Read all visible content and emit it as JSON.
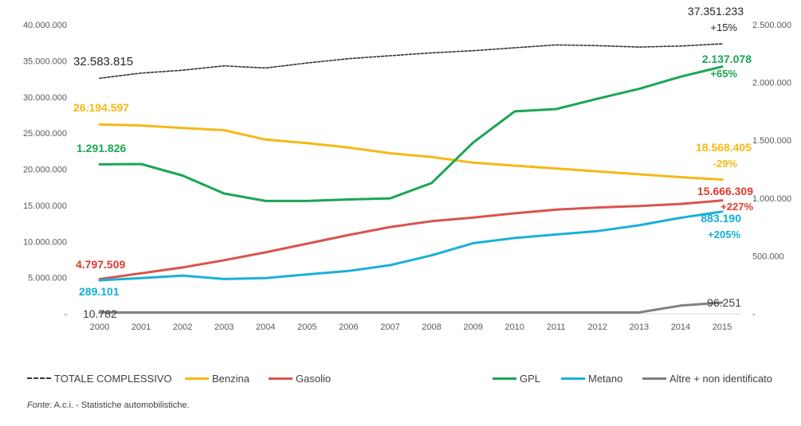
{
  "chart_data": {
    "type": "line",
    "categories": [
      "2000",
      "2001",
      "2002",
      "2003",
      "2004",
      "2005",
      "2006",
      "2007",
      "2008",
      "2009",
      "2010",
      "2011",
      "2012",
      "2013",
      "2014",
      "2015"
    ],
    "left_axis": {
      "ylim": [
        0,
        40000000
      ],
      "ticks": [
        {
          "value": 0,
          "label": "-"
        },
        {
          "value": 5000000,
          "label": "5.000.000"
        },
        {
          "value": 10000000,
          "label": "10.000.000"
        },
        {
          "value": 15000000,
          "label": "15.000.000"
        },
        {
          "value": 20000000,
          "label": "20.000.000"
        },
        {
          "value": 25000000,
          "label": "25.000.000"
        },
        {
          "value": 30000000,
          "label": "30.000.000"
        },
        {
          "value": 35000000,
          "label": "35.000.000"
        },
        {
          "value": 40000000,
          "label": "40.000.000"
        }
      ]
    },
    "right_axis": {
      "ylim": [
        0,
        2500000
      ],
      "ticks": [
        {
          "value": 0,
          "label": "-"
        },
        {
          "value": 500000,
          "label": "500.000"
        },
        {
          "value": 1000000,
          "label": "1.000.000"
        },
        {
          "value": 1500000,
          "label": "1.500.000"
        },
        {
          "value": 2000000,
          "label": "2.000.000"
        },
        {
          "value": 2500000,
          "label": "2.500.000"
        }
      ]
    },
    "series": [
      {
        "name": "TOTALE COMPLESSIVO",
        "axis": "left",
        "color": "#333333",
        "dashed": true,
        "values": [
          32583815,
          33300000,
          33700000,
          34300000,
          34000000,
          34700000,
          35300000,
          35700000,
          36100000,
          36400000,
          36800000,
          37200000,
          37100000,
          36900000,
          37050000,
          37351233
        ],
        "label_start": "32.583.815",
        "label_end": "37.351.233",
        "pct_end": "+15%"
      },
      {
        "name": "Benzina",
        "axis": "left",
        "color": "#f5b915",
        "dashed": false,
        "values": [
          26194597,
          26050000,
          25700000,
          25400000,
          24100000,
          23600000,
          23000000,
          22200000,
          21700000,
          20900000,
          20500000,
          20100000,
          19700000,
          19300000,
          18900000,
          18568405
        ],
        "label_start": "26.194.597",
        "label_end": "18.568.405",
        "pct_end": "-29%"
      },
      {
        "name": "Gasolio",
        "axis": "left",
        "color": "#d9534f",
        "dashed": false,
        "values": [
          4797509,
          5600000,
          6400000,
          7400000,
          8500000,
          9700000,
          10900000,
          12000000,
          12800000,
          13300000,
          13900000,
          14400000,
          14700000,
          14900000,
          15200000,
          15666309
        ],
        "label_start": "4.797.509",
        "label_end": "15.666.309",
        "pct_end": "+227%"
      },
      {
        "name": "GPL",
        "axis": "right",
        "color": "#1aa655",
        "dashed": false,
        "values": [
          1291826,
          1295000,
          1195000,
          1040000,
          975000,
          975000,
          988000,
          998000,
          1130000,
          1480000,
          1750000,
          1770000,
          1860000,
          1945000,
          2050000,
          2137078
        ],
        "label_start": "1.291.826",
        "label_end": "2.137.078",
        "pct_end": "+65%"
      },
      {
        "name": "Metano",
        "axis": "right",
        "color": "#1ab0d8",
        "dashed": false,
        "values": [
          289101,
          308000,
          330000,
          300000,
          308000,
          340000,
          370000,
          420000,
          505000,
          610000,
          655000,
          685000,
          715000,
          765000,
          830000,
          883190
        ],
        "label_start": "289.101",
        "label_end": "883.190",
        "pct_end": "+205%"
      },
      {
        "name": "Altre + non identificato",
        "axis": "right",
        "color": "#808080",
        "dashed": false,
        "values": [
          10782,
          10782,
          10782,
          10782,
          10782,
          10782,
          10782,
          10782,
          10782,
          10782,
          10782,
          10782,
          10782,
          10782,
          70000,
          96251
        ],
        "label_start": "10.782",
        "label_end": "96.251",
        "pct_end": ""
      }
    ],
    "legend_labels": {
      "totale": "TOTALE COMPLESSIVO",
      "benzina": "Benzina",
      "gasolio": "Gasolio",
      "gpl": "GPL",
      "metano": "Metano",
      "altre": "Altre + non identificato"
    }
  },
  "source": {
    "label": "Fonte",
    "text": ": A.c.i. - Statistiche automobilistiche."
  }
}
